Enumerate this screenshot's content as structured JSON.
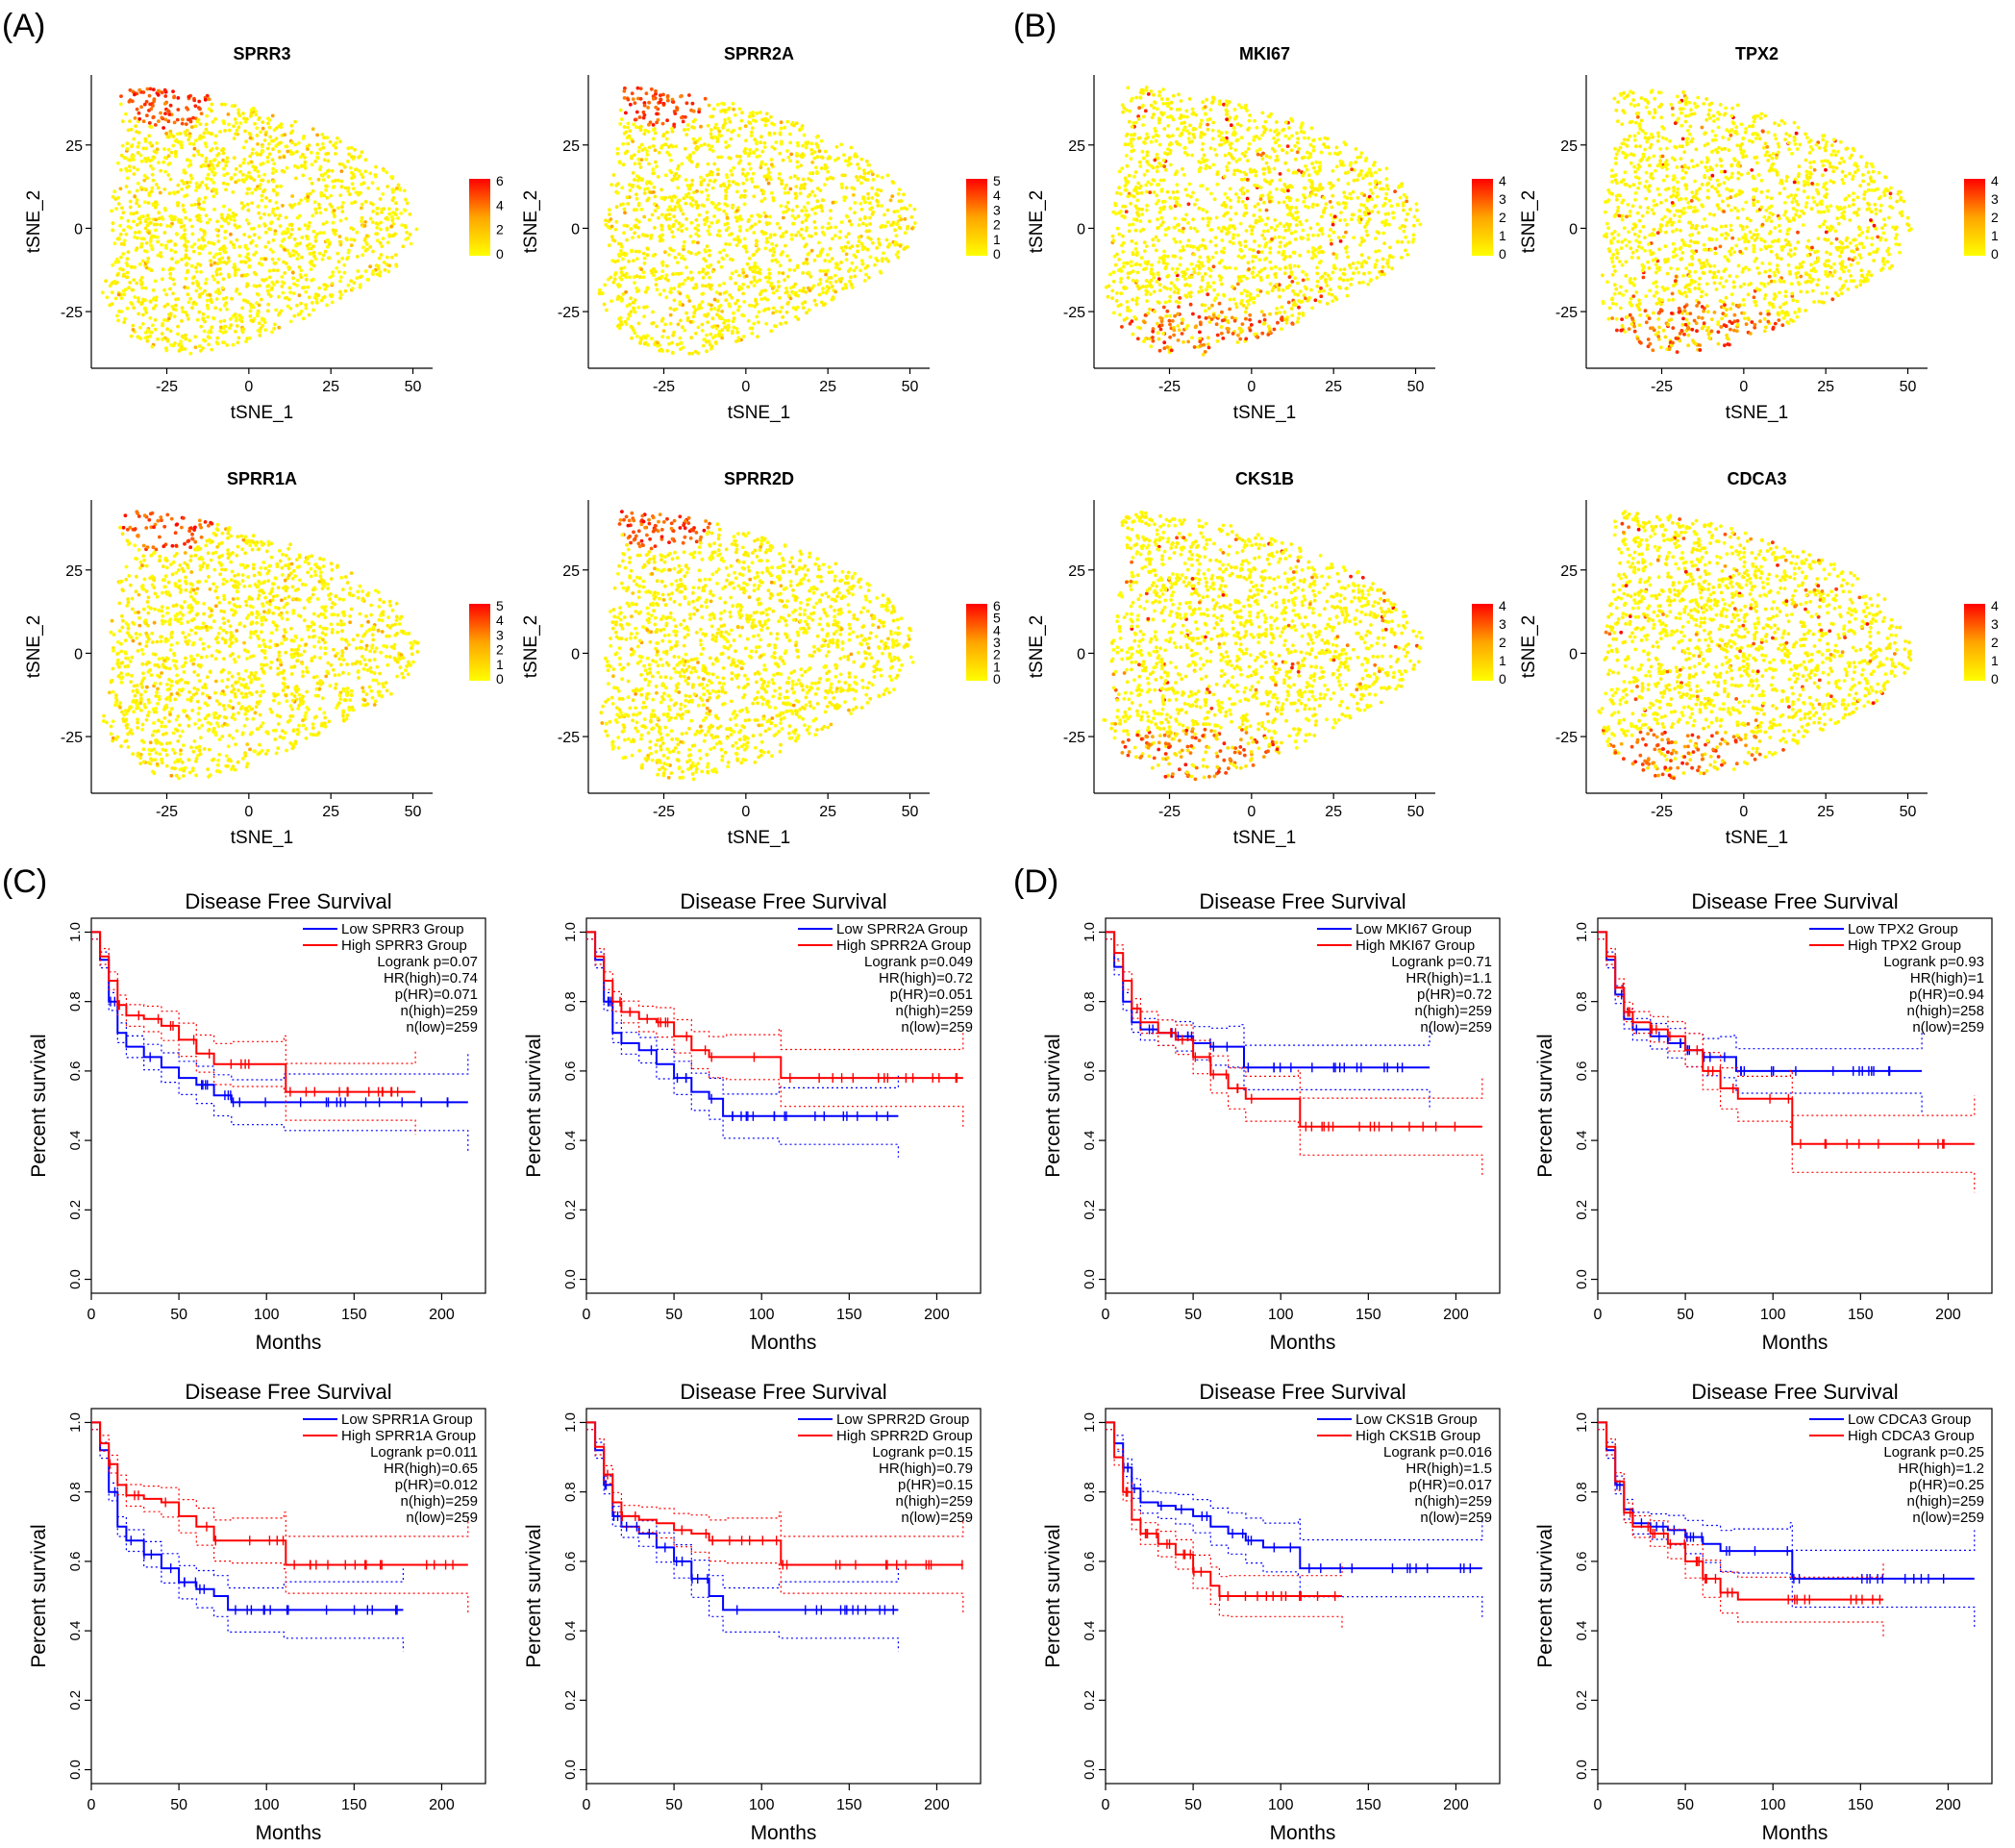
{
  "panel_labels": [
    "(A)",
    "(B)",
    "(C)",
    "(D)"
  ],
  "tsne": {
    "x_ticks": [
      -25,
      0,
      25,
      50
    ],
    "y_ticks": [
      25,
      0,
      -25
    ],
    "xlabel": "tSNE_1",
    "ylabel": "tSNE_2",
    "xlim": [
      -48,
      56
    ],
    "ylim": [
      -42,
      46
    ],
    "color_low": "#ffff00",
    "color_high": "#ff0000"
  },
  "km": {
    "title": "Disease Free Survival",
    "xlabel": "Months",
    "ylabel": "Percent survival",
    "x_ticks": [
      0,
      50,
      100,
      150,
      200
    ],
    "y_ticks": [
      0.0,
      0.2,
      0.4,
      0.6,
      0.8,
      1.0
    ],
    "y_tick_labels": [
      "0.0",
      "0.2",
      "0.4",
      "0.6",
      "0.8",
      "1.0"
    ],
    "xlim": [
      0,
      225
    ],
    "ylim": [
      -0.04,
      1.04
    ],
    "low_color": "#0000ff",
    "high_color": "#ff0000"
  },
  "chart_data": [
    {
      "type": "scatter",
      "panel": "A",
      "title": "SPRR3",
      "hot": "top",
      "legend_ticks": [
        6,
        4,
        2,
        0
      ]
    },
    {
      "type": "scatter",
      "panel": "A",
      "title": "SPRR2A",
      "hot": "top",
      "legend_ticks": [
        5,
        4,
        3,
        2,
        1,
        0
      ]
    },
    {
      "type": "scatter",
      "panel": "B",
      "title": "MKI67",
      "hot": "bottom",
      "legend_ticks": [
        4,
        3,
        2,
        1,
        0
      ]
    },
    {
      "type": "scatter",
      "panel": "B",
      "title": "TPX2",
      "hot": "bottom",
      "legend_ticks": [
        4,
        3,
        2,
        1,
        0
      ]
    },
    {
      "type": "scatter",
      "panel": "A",
      "title": "SPRR1A",
      "hot": "top",
      "legend_ticks": [
        5,
        4,
        3,
        2,
        1,
        0
      ]
    },
    {
      "type": "scatter",
      "panel": "A",
      "title": "SPRR2D",
      "hot": "top",
      "legend_ticks": [
        6,
        5,
        4,
        3,
        2,
        1,
        0
      ]
    },
    {
      "type": "scatter",
      "panel": "B",
      "title": "CKS1B",
      "hot": "bottom",
      "legend_ticks": [
        4,
        3,
        2,
        1,
        0
      ]
    },
    {
      "type": "scatter",
      "panel": "B",
      "title": "CDCA3",
      "hot": "bottom",
      "legend_ticks": [
        4,
        3,
        2,
        1,
        0
      ]
    },
    {
      "type": "line",
      "panel": "C",
      "title": "Disease Free Survival",
      "legend": [
        "Low SPRR3 Group",
        "High SPRR3 Group"
      ],
      "stats": [
        "Logrank p=0.07",
        "HR(high)=0.74",
        "p(HR)=0.071",
        "n(high)=259",
        "n(low)=259"
      ],
      "series": [
        {
          "name": "Low SPRR3 Group",
          "x": [
            0,
            5,
            10,
            15,
            20,
            30,
            40,
            50,
            60,
            70,
            80,
            110,
            215
          ],
          "y": [
            1.0,
            0.92,
            0.8,
            0.71,
            0.67,
            0.64,
            0.61,
            0.58,
            0.56,
            0.53,
            0.51,
            0.51,
            0.51
          ]
        },
        {
          "name": "High SPRR3 Group",
          "x": [
            0,
            5,
            10,
            15,
            20,
            30,
            40,
            50,
            60,
            70,
            80,
            110,
            111,
            185
          ],
          "y": [
            1.0,
            0.93,
            0.86,
            0.79,
            0.76,
            0.75,
            0.73,
            0.69,
            0.65,
            0.62,
            0.62,
            0.62,
            0.54,
            0.54
          ]
        }
      ]
    },
    {
      "type": "line",
      "panel": "C",
      "title": "Disease Free Survival",
      "legend": [
        "Low SPRR2A Group",
        "High SPRR2A Group"
      ],
      "stats": [
        "Logrank p=0.049",
        "HR(high)=0.72",
        "p(HR)=0.051",
        "n(high)=259",
        "n(low)=259"
      ],
      "series": [
        {
          "name": "Low SPRR2A Group",
          "x": [
            0,
            5,
            10,
            15,
            20,
            30,
            40,
            50,
            60,
            70,
            78,
            110,
            178
          ],
          "y": [
            1.0,
            0.92,
            0.8,
            0.71,
            0.68,
            0.66,
            0.62,
            0.58,
            0.54,
            0.52,
            0.47,
            0.47,
            0.47
          ]
        },
        {
          "name": "High SPRR2A Group",
          "x": [
            0,
            5,
            10,
            15,
            20,
            30,
            40,
            50,
            60,
            70,
            80,
            110,
            111,
            215
          ],
          "y": [
            1.0,
            0.93,
            0.86,
            0.8,
            0.77,
            0.75,
            0.74,
            0.7,
            0.66,
            0.64,
            0.64,
            0.64,
            0.58,
            0.58
          ]
        }
      ]
    },
    {
      "type": "line",
      "panel": "D",
      "title": "Disease Free Survival",
      "legend": [
        "Low MKI67 Group",
        "High MKI67 Group"
      ],
      "stats": [
        "Logrank p=0.71",
        "HR(high)=1.1",
        "p(HR)=0.72",
        "n(high)=259",
        "n(low)=259"
      ],
      "series": [
        {
          "name": "Low MKI67 Group",
          "x": [
            0,
            5,
            10,
            15,
            20,
            30,
            40,
            50,
            60,
            70,
            78,
            79,
            185
          ],
          "y": [
            1.0,
            0.9,
            0.8,
            0.74,
            0.72,
            0.71,
            0.7,
            0.68,
            0.67,
            0.67,
            0.67,
            0.61,
            0.61
          ]
        },
        {
          "name": "High MKI67 Group",
          "x": [
            0,
            5,
            10,
            15,
            20,
            30,
            40,
            50,
            60,
            70,
            80,
            110,
            111,
            215
          ],
          "y": [
            1.0,
            0.94,
            0.86,
            0.78,
            0.74,
            0.71,
            0.69,
            0.64,
            0.59,
            0.55,
            0.52,
            0.52,
            0.44,
            0.44
          ]
        }
      ]
    },
    {
      "type": "line",
      "panel": "D",
      "title": "Disease Free Survival",
      "legend": [
        "Low TPX2 Group",
        "High TPX2 Group"
      ],
      "stats": [
        "Logrank p=0.93",
        "HR(high)=1",
        "p(HR)=0.94",
        "n(high)=258",
        "n(low)=259"
      ],
      "series": [
        {
          "name": "Low TPX2 Group",
          "x": [
            0,
            5,
            10,
            15,
            20,
            30,
            40,
            50,
            60,
            70,
            78,
            79,
            185
          ],
          "y": [
            1.0,
            0.92,
            0.82,
            0.75,
            0.72,
            0.7,
            0.68,
            0.66,
            0.64,
            0.64,
            0.64,
            0.6,
            0.6
          ]
        },
        {
          "name": "High TPX2 Group",
          "x": [
            0,
            5,
            10,
            15,
            20,
            30,
            40,
            50,
            60,
            70,
            80,
            110,
            111,
            215
          ],
          "y": [
            1.0,
            0.93,
            0.84,
            0.77,
            0.74,
            0.72,
            0.7,
            0.66,
            0.6,
            0.55,
            0.52,
            0.52,
            0.39,
            0.39
          ]
        }
      ]
    },
    {
      "type": "line",
      "panel": "C",
      "title": "Disease Free Survival",
      "legend": [
        "Low SPRR1A Group",
        "High SPRR1A Group"
      ],
      "stats": [
        "Logrank p=0.011",
        "HR(high)=0.65",
        "p(HR)=0.012",
        "n(high)=259",
        "n(low)=259"
      ],
      "series": [
        {
          "name": "Low SPRR1A Group",
          "x": [
            0,
            5,
            10,
            15,
            20,
            30,
            40,
            50,
            60,
            70,
            78,
            110,
            178
          ],
          "y": [
            1.0,
            0.92,
            0.8,
            0.7,
            0.66,
            0.62,
            0.58,
            0.54,
            0.52,
            0.5,
            0.46,
            0.46,
            0.46
          ]
        },
        {
          "name": "High SPRR1A Group",
          "x": [
            0,
            5,
            10,
            15,
            20,
            30,
            40,
            50,
            60,
            70,
            80,
            110,
            111,
            215
          ],
          "y": [
            1.0,
            0.94,
            0.88,
            0.82,
            0.79,
            0.78,
            0.77,
            0.73,
            0.7,
            0.66,
            0.66,
            0.66,
            0.59,
            0.59
          ]
        }
      ]
    },
    {
      "type": "line",
      "panel": "C",
      "title": "Disease Free Survival",
      "legend": [
        "Low SPRR2D Group",
        "High SPRR2D Group"
      ],
      "stats": [
        "Logrank p=0.15",
        "HR(high)=0.79",
        "p(HR)=0.15",
        "n(high)=259",
        "n(low)=259"
      ],
      "series": [
        {
          "name": "Low SPRR2D Group",
          "x": [
            0,
            5,
            10,
            15,
            20,
            30,
            40,
            50,
            60,
            70,
            78,
            110,
            178
          ],
          "y": [
            1.0,
            0.92,
            0.82,
            0.73,
            0.7,
            0.68,
            0.64,
            0.6,
            0.55,
            0.5,
            0.46,
            0.46,
            0.46
          ]
        },
        {
          "name": "High SPRR2D Group",
          "x": [
            0,
            5,
            10,
            15,
            20,
            30,
            40,
            50,
            60,
            70,
            80,
            110,
            111,
            215
          ],
          "y": [
            1.0,
            0.93,
            0.85,
            0.77,
            0.73,
            0.72,
            0.71,
            0.69,
            0.68,
            0.66,
            0.66,
            0.66,
            0.59,
            0.59
          ]
        }
      ]
    },
    {
      "type": "line",
      "panel": "D",
      "title": "Disease Free Survival",
      "legend": [
        "Low CKS1B Group",
        "High CKS1B Group"
      ],
      "stats": [
        "Logrank p=0.016",
        "HR(high)=1.5",
        "p(HR)=0.017",
        "n(high)=259",
        "n(low)=259"
      ],
      "series": [
        {
          "name": "Low CKS1B Group",
          "x": [
            0,
            5,
            10,
            15,
            20,
            30,
            40,
            50,
            60,
            70,
            80,
            90,
            110,
            111,
            215
          ],
          "y": [
            1.0,
            0.94,
            0.87,
            0.81,
            0.77,
            0.76,
            0.75,
            0.73,
            0.7,
            0.68,
            0.66,
            0.64,
            0.64,
            0.58,
            0.58
          ]
        },
        {
          "name": "High CKS1B Group",
          "x": [
            0,
            5,
            10,
            15,
            20,
            30,
            40,
            50,
            60,
            65,
            70,
            135
          ],
          "y": [
            1.0,
            0.9,
            0.8,
            0.72,
            0.68,
            0.65,
            0.62,
            0.57,
            0.53,
            0.5,
            0.5,
            0.5
          ]
        }
      ]
    },
    {
      "type": "line",
      "panel": "D",
      "title": "Disease Free Survival",
      "legend": [
        "Low CDCA3 Group",
        "High CDCA3 Group"
      ],
      "stats": [
        "Logrank p=0.25",
        "HR(high)=1.2",
        "p(HR)=0.25",
        "n(high)=259",
        "n(low)=259"
      ],
      "series": [
        {
          "name": "Low CDCA3 Group",
          "x": [
            0,
            5,
            10,
            15,
            20,
            30,
            40,
            50,
            60,
            70,
            78,
            110,
            111,
            215
          ],
          "y": [
            1.0,
            0.92,
            0.82,
            0.75,
            0.71,
            0.7,
            0.69,
            0.67,
            0.65,
            0.63,
            0.63,
            0.63,
            0.55,
            0.55
          ]
        },
        {
          "name": "High CDCA3 Group",
          "x": [
            0,
            5,
            10,
            15,
            20,
            30,
            40,
            50,
            60,
            70,
            80,
            163
          ],
          "y": [
            1.0,
            0.93,
            0.83,
            0.74,
            0.7,
            0.68,
            0.65,
            0.6,
            0.55,
            0.51,
            0.49,
            0.49
          ]
        }
      ]
    }
  ]
}
